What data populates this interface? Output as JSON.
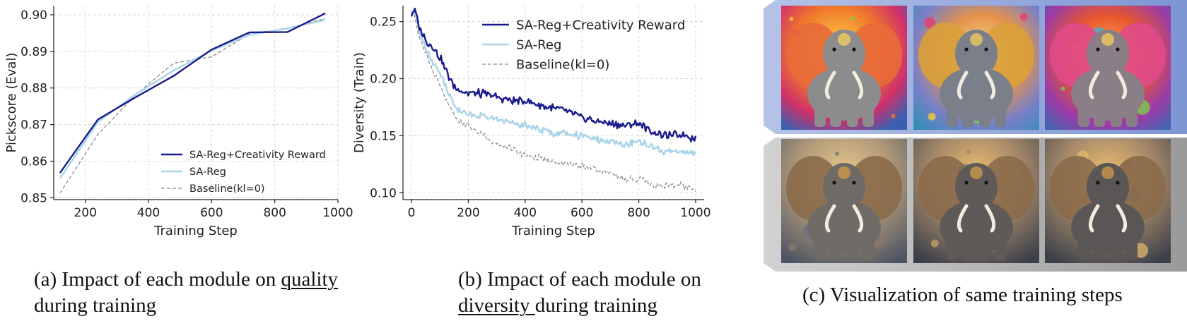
{
  "captions": {
    "a_prefix": "(a) Impact of each module on ",
    "a_underlined": "quality",
    "a_line2": "during training",
    "b_line1": "(b) Impact of each module on",
    "b_underlined": "diversity ",
    "b_suffix": "during training",
    "c": "(c) Visualization of same training steps"
  },
  "visualization": {
    "rows": [
      {
        "name": "with-creativity-reward",
        "frame_color": "#8fa4d8",
        "images": [
          "elephant-colorful-1",
          "elephant-colorful-2",
          "elephant-colorful-3"
        ]
      },
      {
        "name": "baseline",
        "frame_color": "#b3b3b3",
        "images": [
          "elephant-muted-1",
          "elephant-muted-2",
          "elephant-muted-3"
        ]
      }
    ]
  },
  "chart_data": [
    {
      "type": "line",
      "id": "pickscore",
      "title": "",
      "xlabel": "Training Step",
      "ylabel": "Pickscore (Eval)",
      "xlim": [
        100,
        1000
      ],
      "ylim": [
        0.8495,
        0.9025
      ],
      "xticks": [
        200,
        400,
        600,
        800,
        1000
      ],
      "yticks": [
        0.85,
        0.86,
        0.87,
        0.88,
        0.89,
        0.9
      ],
      "ytick_labels": [
        "0.85",
        "0.86",
        "0.87",
        "0.88",
        "0.89",
        "0.90"
      ],
      "grid": true,
      "legend_position": "bottom-right",
      "series": [
        {
          "name": "SA-Reg+Creativity Reward",
          "color": "#1a1a8c",
          "style": "solid",
          "x": [
            120,
            240,
            360,
            480,
            600,
            720,
            840,
            960
          ],
          "y": [
            0.8568,
            0.8714,
            0.8775,
            0.8833,
            0.8905,
            0.8952,
            0.8953,
            0.9004
          ]
        },
        {
          "name": "SA-Reg",
          "color": "#a8d4e8",
          "style": "solid",
          "x": [
            120,
            240,
            360,
            480,
            600,
            720,
            840,
            960
          ],
          "y": [
            0.8553,
            0.8707,
            0.8783,
            0.8848,
            0.8902,
            0.8945,
            0.8963,
            0.8986
          ]
        },
        {
          "name": "Baseline(kl=0)",
          "color": "#8c8c8c",
          "style": "dashed",
          "x": [
            120,
            240,
            360,
            480,
            600,
            720,
            840,
            960
          ],
          "y": [
            0.8513,
            0.8673,
            0.8782,
            0.8868,
            0.8885,
            0.8948,
            0.8963,
            0.899
          ]
        }
      ]
    },
    {
      "type": "line",
      "id": "diversity",
      "title": "",
      "xlabel": "Training Step",
      "ylabel": "Diversity (Train)",
      "xlim": [
        -30,
        1030
      ],
      "ylim": [
        0.094,
        0.264
      ],
      "xticks": [
        0,
        200,
        400,
        600,
        800,
        1000
      ],
      "yticks": [
        0.1,
        0.15,
        0.2,
        0.25
      ],
      "ytick_labels": [
        "0.10",
        "0.15",
        "0.20",
        "0.25"
      ],
      "grid": true,
      "legend_position": "top-right",
      "series": [
        {
          "name": "SA-Reg+Creativity Reward",
          "color": "#1a1a8c",
          "style": "solid",
          "x": [
            0,
            10,
            25,
            50,
            75,
            100,
            125,
            150,
            200,
            250,
            300,
            350,
            400,
            450,
            500,
            550,
            600,
            650,
            700,
            750,
            800,
            850,
            900,
            950,
            1000
          ],
          "y": [
            0.256,
            0.262,
            0.246,
            0.234,
            0.227,
            0.219,
            0.205,
            0.193,
            0.187,
            0.187,
            0.184,
            0.181,
            0.181,
            0.177,
            0.174,
            0.171,
            0.166,
            0.163,
            0.161,
            0.158,
            0.161,
            0.153,
            0.15,
            0.151,
            0.147
          ]
        },
        {
          "name": "SA-Reg",
          "color": "#a8d4e8",
          "style": "solid",
          "x": [
            0,
            10,
            25,
            50,
            75,
            100,
            125,
            150,
            200,
            250,
            300,
            350,
            400,
            450,
            500,
            550,
            600,
            650,
            700,
            750,
            800,
            850,
            900,
            950,
            1000
          ],
          "y": [
            0.256,
            0.261,
            0.244,
            0.227,
            0.215,
            0.205,
            0.191,
            0.176,
            0.168,
            0.168,
            0.164,
            0.162,
            0.16,
            0.155,
            0.152,
            0.152,
            0.15,
            0.146,
            0.145,
            0.142,
            0.145,
            0.139,
            0.135,
            0.137,
            0.134
          ]
        },
        {
          "name": "Baseline(kl=0)",
          "color": "#8c8c8c",
          "style": "dashed",
          "x": [
            0,
            10,
            25,
            50,
            75,
            100,
            125,
            150,
            200,
            250,
            300,
            350,
            400,
            450,
            500,
            550,
            600,
            650,
            700,
            750,
            800,
            850,
            900,
            950,
            1000
          ],
          "y": [
            0.256,
            0.258,
            0.239,
            0.223,
            0.206,
            0.195,
            0.181,
            0.167,
            0.158,
            0.15,
            0.143,
            0.139,
            0.133,
            0.131,
            0.126,
            0.125,
            0.124,
            0.12,
            0.117,
            0.112,
            0.112,
            0.107,
            0.106,
            0.107,
            0.102
          ]
        }
      ]
    }
  ]
}
